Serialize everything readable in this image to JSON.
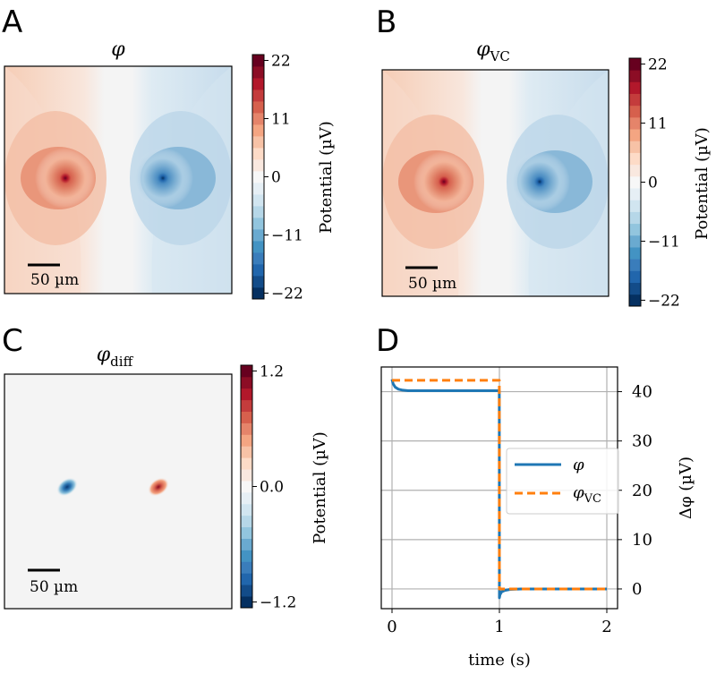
{
  "chart_data": [
    {
      "panel": "A",
      "type": "heatmap",
      "title": "φ",
      "colorbar": {
        "label": "Potential (µV)",
        "ticks": [
          "22",
          "11",
          "0",
          "−11",
          "−22"
        ],
        "range": [
          -22,
          22
        ],
        "colormap": "RdBu_r"
      },
      "scale_bar": "50 µm",
      "sources": [
        {
          "polarity": "positive",
          "peak": 22
        },
        {
          "polarity": "negative",
          "peak": -22
        }
      ]
    },
    {
      "panel": "B",
      "type": "heatmap",
      "title": "φ",
      "title_subscript": "VC",
      "colorbar": {
        "label": "Potential (µV)",
        "ticks": [
          "22",
          "11",
          "0",
          "−11",
          "−22"
        ],
        "range": [
          -22,
          22
        ],
        "colormap": "RdBu_r"
      },
      "scale_bar": "50 µm",
      "sources": [
        {
          "polarity": "positive",
          "peak": 22
        },
        {
          "polarity": "negative",
          "peak": -22
        }
      ]
    },
    {
      "panel": "C",
      "type": "heatmap",
      "title": "φ",
      "title_subscript": "diff",
      "colorbar": {
        "label": "Potential (µV)",
        "ticks": [
          "1.2",
          "0.0",
          "−1.2"
        ],
        "range": [
          -1.2,
          1.2
        ],
        "colormap": "RdBu_r"
      },
      "scale_bar": "50 µm",
      "sources": [
        {
          "polarity": "negative",
          "peak": -1.2
        },
        {
          "polarity": "positive",
          "peak": 1.2
        }
      ]
    },
    {
      "panel": "D",
      "type": "line",
      "xlabel": "time (s)",
      "ylabel": "Δφ (µV)",
      "xlim": [
        -0.1,
        2.1
      ],
      "ylim": [
        -4,
        45
      ],
      "xticks": [
        0,
        1,
        2
      ],
      "yticks": [
        0,
        10,
        20,
        30,
        40
      ],
      "grid": true,
      "legend_position": "center-right",
      "series": [
        {
          "name": "φ",
          "color": "#1f77b4",
          "style": "solid",
          "x": [
            0,
            0.01,
            0.03,
            0.06,
            0.1,
            0.15,
            0.3,
            0.6,
            0.999,
            1.0,
            1.005,
            1.02,
            1.05,
            1.1,
            1.2,
            1.5,
            2.0
          ],
          "y": [
            42.5,
            41.6,
            40.9,
            40.5,
            40.3,
            40.2,
            40.2,
            40.2,
            40.2,
            -1.8,
            -1.2,
            -0.6,
            -0.3,
            -0.1,
            0.0,
            0.0,
            0.0
          ]
        },
        {
          "name": "φ",
          "name_subscript": "VC",
          "color": "#ff7f0e",
          "style": "dashed",
          "x": [
            0,
            0.999,
            1.0,
            2.0
          ],
          "y": [
            42.3,
            42.3,
            0.0,
            0.0
          ]
        }
      ]
    }
  ],
  "panels": {
    "A": {
      "letter": "A"
    },
    "B": {
      "letter": "B"
    },
    "C": {
      "letter": "C"
    },
    "D": {
      "letter": "D"
    }
  },
  "colors": {
    "line_phi": "#1f77b4",
    "line_phi_vc": "#ff7f0e",
    "grid": "#b0b0b0"
  }
}
